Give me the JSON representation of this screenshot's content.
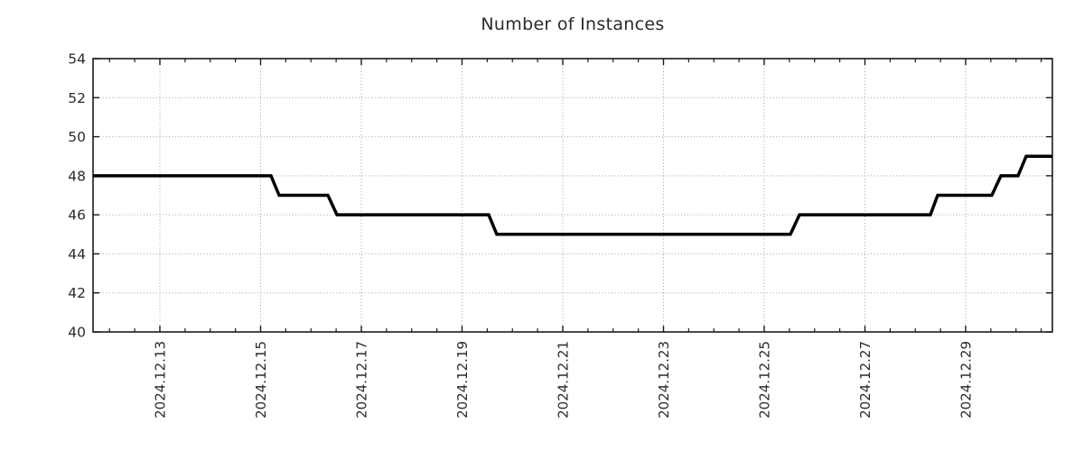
{
  "chart_data": {
    "type": "line",
    "subtype": "step-line-timeseries",
    "title": "Number of Instances",
    "xlabel": "",
    "ylabel": "",
    "ylim": [
      40,
      54
    ],
    "y_ticks": [
      40,
      42,
      44,
      46,
      48,
      50,
      52,
      54
    ],
    "x_epoch": "2024-12-11 00:00",
    "x_domain_days": [
      0.673,
      19.722
    ],
    "x_major_ticks": [
      {
        "t": 2,
        "label": "2024.12.13"
      },
      {
        "t": 4,
        "label": "2024.12.15"
      },
      {
        "t": 6,
        "label": "2024.12.17"
      },
      {
        "t": 8,
        "label": "2024.12.19"
      },
      {
        "t": 10,
        "label": "2024.12.21"
      },
      {
        "t": 12,
        "label": "2024.12.23"
      },
      {
        "t": 14,
        "label": "2024.12.25"
      },
      {
        "t": 16,
        "label": "2024.12.27"
      },
      {
        "t": 18,
        "label": "2024.12.29"
      }
    ],
    "x_minor_step_days": 0.5,
    "grid": "on-major-ticks-dotted",
    "legend": "none",
    "series": [
      {
        "name": "instances",
        "points": [
          {
            "t": 0.673,
            "time": "2024-12-11 16:09",
            "v": 48
          },
          {
            "t": 4.206,
            "time": "2024-12-15 04:57",
            "v": 48
          },
          {
            "t": 4.368,
            "time": "2024-12-15 08:50",
            "v": 47
          },
          {
            "t": 5.336,
            "time": "2024-12-16 08:04",
            "v": 47
          },
          {
            "t": 5.516,
            "time": "2024-12-16 12:23",
            "v": 46
          },
          {
            "t": 8.529,
            "time": "2024-12-19 12:42",
            "v": 46
          },
          {
            "t": 8.69,
            "time": "2024-12-19 16:34",
            "v": 45
          },
          {
            "t": 14.52,
            "time": "2024-12-25 12:29",
            "v": 45
          },
          {
            "t": 14.7,
            "time": "2024-12-25 16:48",
            "v": 46
          },
          {
            "t": 17.3,
            "time": "2024-12-28 07:12",
            "v": 46
          },
          {
            "t": 17.444,
            "time": "2024-12-28 10:39",
            "v": 47
          },
          {
            "t": 18.52,
            "time": "2024-12-29 12:29",
            "v": 47
          },
          {
            "t": 18.7,
            "time": "2024-12-29 16:48",
            "v": 48
          },
          {
            "t": 19.04,
            "time": "2024-12-30 00:58",
            "v": 48
          },
          {
            "t": 19.202,
            "time": "2024-12-30 04:51",
            "v": 49
          },
          {
            "t": 19.722,
            "time": "2024-12-30 17:20",
            "v": 49
          }
        ]
      }
    ],
    "colors": {
      "line": "#000000",
      "frame": "#1a1a1a",
      "grid": "#a3a3a3",
      "tick": "#1a1a1a",
      "text": "#2b2b2b",
      "background": "#ffffff"
    },
    "line_width": 3.5
  }
}
